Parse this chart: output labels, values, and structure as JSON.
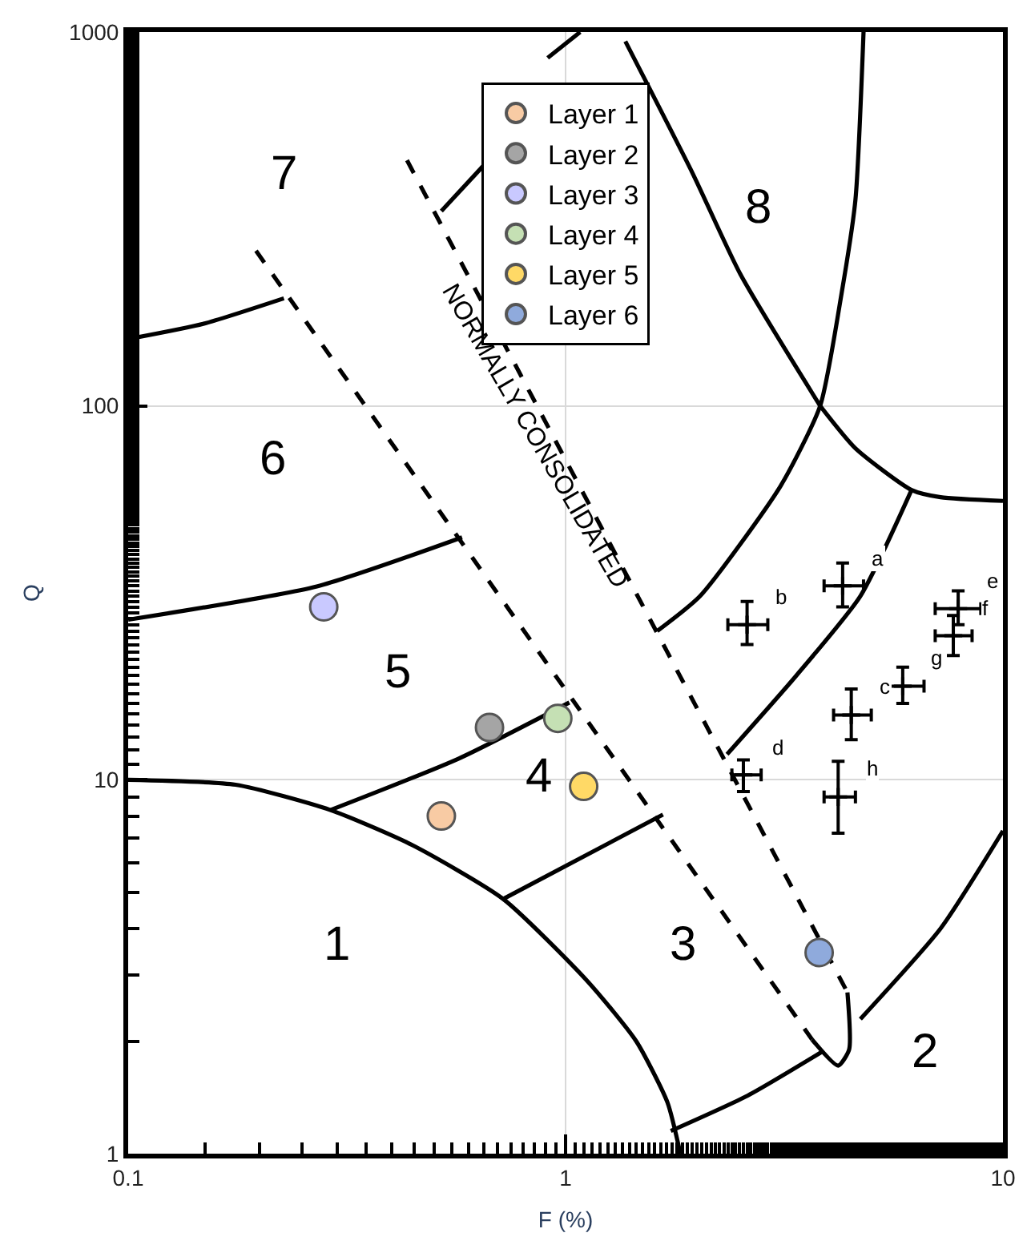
{
  "chart_data": {
    "type": "scatter",
    "xlabel": "F (%)",
    "ylabel": "Q",
    "log": "xy",
    "grid": true,
    "legend": "top",
    "xlim": [
      0.1,
      10
    ],
    "ylim": [
      1,
      1000
    ],
    "xticks": [
      0.1,
      1,
      10
    ],
    "yticks": [
      1,
      10,
      100,
      1000
    ],
    "series": [
      {
        "type": "line",
        "color": "#000000",
        "line_style": "solid",
        "marker": "none",
        "x": [
          0.1,
          0.176,
          0.29,
          0.445,
          0.72,
          1.12,
          1.45,
          1.71,
          1.83
        ],
        "values": [
          10,
          9.7,
          8.3,
          6.7,
          4.8,
          2.9,
          2.0,
          1.37,
          1.0
        ]
      },
      {
        "type": "line",
        "color": "#000000",
        "line_style": "solid",
        "marker": "none",
        "x": [
          0.29,
          0.57,
          1.02
        ],
        "values": [
          8.3,
          11.4,
          16.1
        ]
      },
      {
        "type": "line",
        "color": "#000000",
        "line_style": "solid",
        "marker": "none",
        "x": [
          0.72,
          1.67
        ],
        "values": [
          4.8,
          8.07
        ]
      },
      {
        "type": "line",
        "color": "#000000",
        "line_style": "solid",
        "marker": "none",
        "x": [
          1.74,
          2.61,
          3.88
        ],
        "values": [
          1.15,
          1.43,
          1.88
        ]
      },
      {
        "type": "line",
        "color": "#000000",
        "line_style": "solid",
        "marker": "none",
        "x": [
          0.1,
          0.27,
          0.58
        ],
        "values": [
          26.8,
          32.9,
          44.5
        ]
      },
      {
        "type": "line",
        "color": "#000000",
        "line_style": "solid",
        "marker": "none",
        "x": [
          0.1,
          0.149,
          0.227
        ],
        "values": [
          151,
          166,
          194
        ]
      },
      {
        "type": "line",
        "color": "#000000",
        "line_style": "solid",
        "marker": "none",
        "x": [
          0.52,
          0.65
        ],
        "values": [
          332,
          440
        ]
      },
      {
        "type": "line",
        "color": "#000000",
        "line_style": "solid",
        "marker": "none",
        "x": [
          0.91,
          1.08
        ],
        "values": [
          853,
          1000
        ]
      },
      {
        "type": "line",
        "color": "#000000",
        "line_style": "solid",
        "marker": "none",
        "x": [
          1.37,
          1.95,
          2.51,
          3.82
        ],
        "values": [
          944,
          420,
          225,
          100
        ]
      },
      {
        "type": "line",
        "color": "#000000",
        "line_style": "solid",
        "marker": "none",
        "x": [
          4.8,
          4.6,
          4.27,
          3.82,
          3.1,
          2.03,
          1.62
        ],
        "values": [
          1000,
          356,
          198,
          100,
          61,
          31,
          25
        ]
      },
      {
        "type": "line",
        "color": "#000000",
        "line_style": "solid",
        "marker": "none",
        "x": [
          6.18,
          4.72,
          3.37,
          2.34
        ],
        "values": [
          59.6,
          31,
          19,
          11.7
        ]
      },
      {
        "type": "line",
        "color": "#000000",
        "line_style": "solid",
        "marker": "none",
        "x": [
          3.82,
          4.6,
          6.18,
          7.2,
          10
        ],
        "values": [
          100,
          77,
          59.6,
          57,
          55.7
        ]
      },
      {
        "type": "line",
        "color": "#000000",
        "line_style": "solid",
        "marker": "none",
        "x": [
          4.72,
          7.2,
          10
        ],
        "values": [
          2.29,
          4.0,
          7.3
        ]
      },
      {
        "type": "line",
        "color": "#000000",
        "line_style": "dashed",
        "marker": "none",
        "x": [
          0.196,
          3.66
        ],
        "values": [
          260,
          2.02
        ]
      },
      {
        "type": "line",
        "color": "#000000",
        "line_style": "dashed",
        "marker": "none",
        "x": [
          0.434,
          4.41
        ],
        "values": [
          454,
          2.7
        ]
      },
      {
        "type": "line",
        "color": "#000000",
        "line_style": "solid",
        "marker": "none",
        "x": [
          4.41,
          4.45,
          4.2,
          3.66
        ],
        "values": [
          2.7,
          1.9,
          1.72,
          2.02
        ]
      },
      {
        "color": "#000000",
        "marker": "cross",
        "x": [
          4.3,
          2.6,
          4.5,
          2.55,
          7.9,
          7.7,
          5.9,
          4.2
        ],
        "values": [
          33,
          26,
          14.9,
          10.3,
          28.7,
          24.3,
          17.8,
          9.0
        ],
        "value_labels": [
          "a",
          "b",
          "c",
          "d",
          "e",
          "f",
          "g",
          "h"
        ],
        "errors": [
          [
            29,
            38
          ],
          [
            23,
            30
          ],
          [
            12.8,
            17.5
          ],
          [
            9.3,
            11.3
          ],
          [
            26,
            32
          ],
          [
            21.5,
            27.5
          ],
          [
            16,
            20
          ],
          [
            7.2,
            11.2
          ]
        ],
        "xerrors": [
          [
            3.9,
            4.8
          ],
          [
            2.35,
            2.9
          ],
          [
            4.1,
            5.0
          ],
          [
            2.4,
            2.8
          ],
          [
            7.0,
            8.9
          ],
          [
            7.0,
            8.5
          ],
          [
            5.3,
            6.6
          ],
          [
            3.9,
            4.6
          ]
        ]
      },
      {
        "name": "Layer 1",
        "color": "#f8cba4",
        "marker": "circle",
        "x": [
          0.52
        ],
        "values": [
          8.0
        ]
      },
      {
        "name": "Layer 2",
        "color": "#a5a5a5",
        "marker": "circle",
        "x": [
          0.67
        ],
        "values": [
          13.8
        ]
      },
      {
        "name": "Layer 3",
        "color": "#c9c9ff",
        "marker": "circle",
        "x": [
          0.28
        ],
        "values": [
          29
        ]
      },
      {
        "name": "Layer 4",
        "color": "#c5e0b4",
        "marker": "circle",
        "x": [
          0.96
        ],
        "values": [
          14.6
        ]
      },
      {
        "name": "Layer 5",
        "color": "#ffd966",
        "marker": "circle",
        "x": [
          1.1
        ],
        "values": [
          9.6
        ]
      },
      {
        "name": "Layer 6",
        "color": "#8faadc",
        "marker": "circle",
        "x": [
          3.8
        ],
        "values": [
          3.45
        ]
      }
    ],
    "annotations": [
      "7",
      "8",
      "6",
      "5",
      "4",
      "1",
      "3",
      "2",
      "NORMALLY CONSOLIDATED"
    ]
  }
}
